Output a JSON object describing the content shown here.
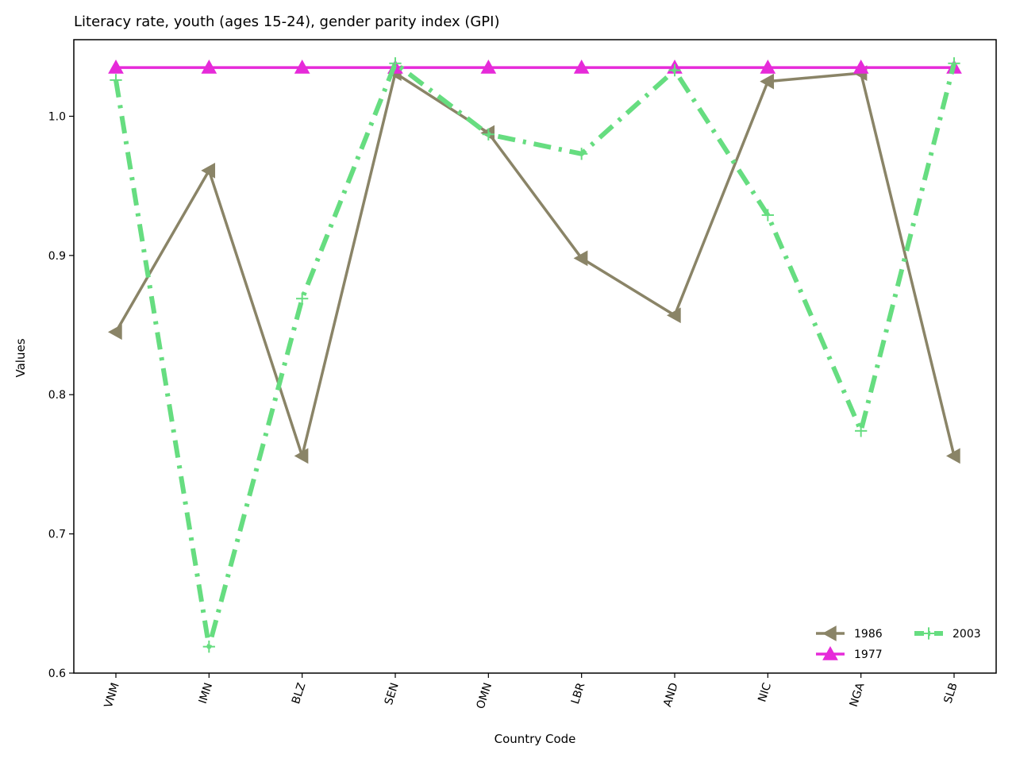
{
  "chart_data": {
    "type": "line",
    "title": "Literacy rate, youth (ages 15-24), gender parity index (GPI)",
    "xlabel": "Country Code",
    "ylabel": "Values",
    "categories": [
      "VNM",
      "IMN",
      "BLZ",
      "SEN",
      "OMN",
      "LBR",
      "AND",
      "NIC",
      "NGA",
      "SLB"
    ],
    "ylim": [
      0.6,
      1.055
    ],
    "yticks": [
      0.6,
      0.7,
      0.8,
      0.9,
      1.0
    ],
    "ytick_labels": [
      "0.6",
      "0.7",
      "0.8",
      "0.9",
      "1.0"
    ],
    "grid": false,
    "legend_position": "lower-right",
    "series": [
      {
        "name": "1986",
        "color": "#8a8467",
        "marker": "triangle-left",
        "linestyle": "solid",
        "values": [
          0.845,
          0.961,
          0.756,
          1.031,
          0.988,
          0.898,
          0.857,
          1.025,
          1.031,
          0.756
        ]
      },
      {
        "name": "1977",
        "color": "#e62ad9",
        "marker": "triangle-up",
        "linestyle": "solid",
        "values": [
          1.035,
          1.035,
          1.035,
          1.035,
          1.035,
          1.035,
          1.035,
          1.035,
          1.035,
          1.035
        ]
      },
      {
        "name": "2003",
        "color": "#66dd80",
        "marker": "plus",
        "linestyle": "dashdot",
        "values": [
          1.026,
          0.619,
          0.869,
          1.038,
          0.987,
          0.973,
          1.033,
          0.929,
          0.774,
          1.038
        ]
      }
    ],
    "legend_order": [
      "1986",
      "2003",
      "1977"
    ]
  }
}
